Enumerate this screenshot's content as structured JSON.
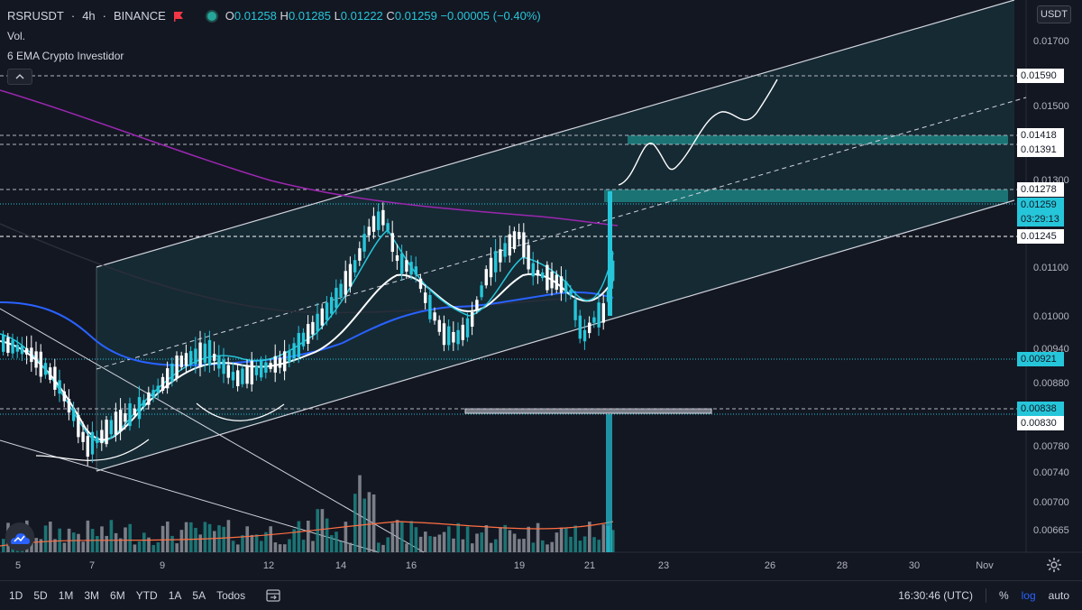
{
  "header": {
    "symbol": "RSRUSDT",
    "interval": "4h",
    "exchange": "BINANCE",
    "ohlc": {
      "o_label": "O",
      "o": "0.01258",
      "h_label": "H",
      "h": "0.01285",
      "l_label": "L",
      "l": "0.01222",
      "c_label": "C",
      "c": "0.01259",
      "change": "−0.00005 (−0.40%)"
    }
  },
  "indicators": {
    "vol": "Vol.",
    "ema": "6 EMA Crypto Investidor"
  },
  "currency_button": "USDT",
  "colors": {
    "bg": "#131722",
    "up": "#26c6da",
    "down": "#ffffff",
    "ema_blue": "#2962ff",
    "ema_purple": "#9c27b0",
    "accent": "#2962ff"
  },
  "chart_data": {
    "type": "candlestick",
    "y_axis_ticks": [
      "0.01700",
      "0.01590",
      "0.01500",
      "0.01418",
      "0.01391",
      "0.01300",
      "0.01278",
      "0.01259",
      "0.01245",
      "0.01100",
      "0.01000",
      "0.00940",
      "0.00921",
      "0.00880",
      "0.00838",
      "0.00830",
      "0.00780",
      "0.00740",
      "0.00700",
      "0.00665"
    ],
    "y_range": [
      0.0063,
      0.0178
    ],
    "x_axis_ticks": [
      "5",
      "7",
      "9",
      "12",
      "14",
      "16",
      "19",
      "21",
      "23",
      "26",
      "28",
      "30",
      "Nov"
    ],
    "price_labels": [
      {
        "value": "0.01590",
        "style": "plain"
      },
      {
        "value": "0.01418",
        "style": "plain"
      },
      {
        "value": "0.01391",
        "style": "plain"
      },
      {
        "value": "0.01278",
        "style": "plain"
      },
      {
        "value": "0.01259",
        "style": "current"
      },
      {
        "value": "03:29:13",
        "style": "countdown"
      },
      {
        "value": "0.01245",
        "style": "plain"
      },
      {
        "value": "0.00921",
        "style": "highlight"
      },
      {
        "value": "0.00838",
        "style": "highlight"
      },
      {
        "value": "0.00830",
        "style": "plain"
      }
    ],
    "annotations": [
      "ascending channel",
      "midline",
      "resistance zone 0.01391–0.01418",
      "resistance zone 0.01245–0.01278",
      "support 0.00830–0.00838",
      "projected path"
    ]
  },
  "bottom_bar": {
    "timeframes": [
      "1D",
      "5D",
      "1M",
      "3M",
      "6M",
      "YTD",
      "1A",
      "5A",
      "Todos"
    ],
    "clock": "16:30:46 (UTC)",
    "percent": "%",
    "log": "log",
    "auto": "auto"
  }
}
